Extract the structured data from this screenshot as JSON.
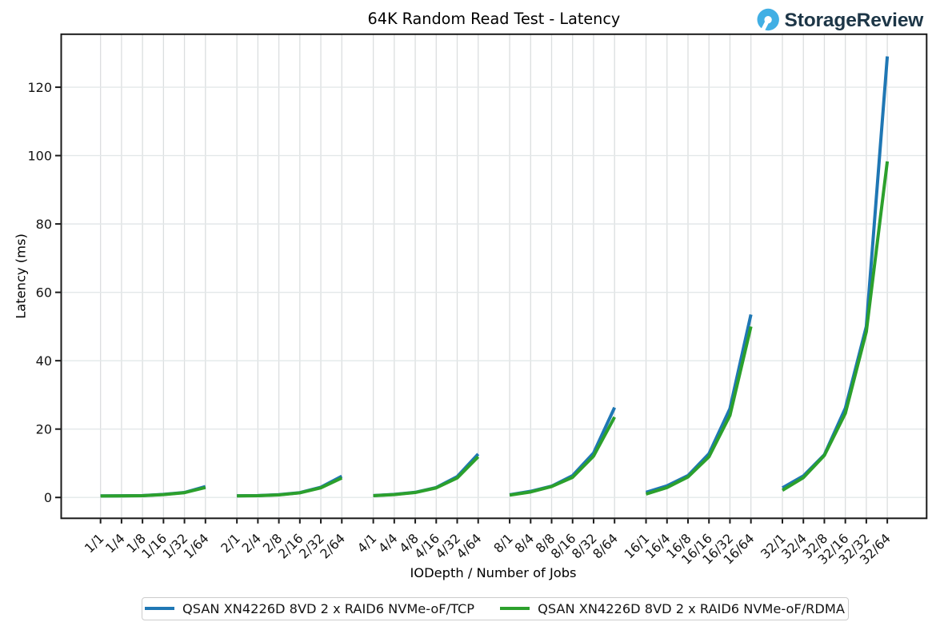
{
  "branding": {
    "logo_text": "StorageReview",
    "logo_icon": "storagereview-bubble-icon",
    "icon_color": "#41afe4",
    "text_color": "#1d3647"
  },
  "chart_data": {
    "type": "line",
    "title": "64K Random Read Test - Latency",
    "xlabel": "IODepth / Number of Jobs",
    "ylabel": "Latency (ms)",
    "ylim": [
      -6.1,
      135.5
    ],
    "yticks": [
      0,
      20,
      40,
      60,
      80,
      100,
      120
    ],
    "grid": true,
    "legend_position": "bottom-center",
    "group_size": 6,
    "group_gap_units": 1.5,
    "categories": [
      "1/1",
      "1/4",
      "1/8",
      "1/16",
      "1/32",
      "1/64",
      "2/1",
      "2/4",
      "2/8",
      "2/16",
      "2/32",
      "2/64",
      "4/1",
      "4/4",
      "4/8",
      "4/16",
      "4/32",
      "4/64",
      "8/1",
      "8/4",
      "8/8",
      "8/16",
      "8/32",
      "8/64",
      "16/1",
      "16/4",
      "16/8",
      "16/16",
      "16/32",
      "16/64",
      "32/1",
      "32/4",
      "32/8",
      "32/16",
      "32/32",
      "32/64"
    ],
    "series": [
      {
        "name": "QSAN XN4226D 8VD 2 x RAID6 NVMe-oF/TCP",
        "color": "#1f77b4",
        "values": [
          0.45,
          0.48,
          0.55,
          0.9,
          1.45,
          3.2,
          0.5,
          0.55,
          0.8,
          1.4,
          3.0,
          6.2,
          0.55,
          0.9,
          1.5,
          2.9,
          6.1,
          12.7,
          0.8,
          1.8,
          3.3,
          6.4,
          13.0,
          26.3,
          1.5,
          3.4,
          6.4,
          12.8,
          26.0,
          53.5,
          2.8,
          6.3,
          12.5,
          26.1,
          50.0,
          129.0
        ]
      },
      {
        "name": "QSAN XN4226D 8VD 2 x RAID6 NVMe-oF/RDMA",
        "color": "#2ca02c",
        "values": [
          0.42,
          0.45,
          0.52,
          0.85,
          1.4,
          2.9,
          0.47,
          0.52,
          0.75,
          1.35,
          2.8,
          5.7,
          0.52,
          0.85,
          1.45,
          2.8,
          5.7,
          11.9,
          0.7,
          1.6,
          3.2,
          5.9,
          12.1,
          23.5,
          1.0,
          2.9,
          6.0,
          11.9,
          24.0,
          50.0,
          2.1,
          5.8,
          12.3,
          24.6,
          48.5,
          98.3
        ]
      }
    ]
  }
}
